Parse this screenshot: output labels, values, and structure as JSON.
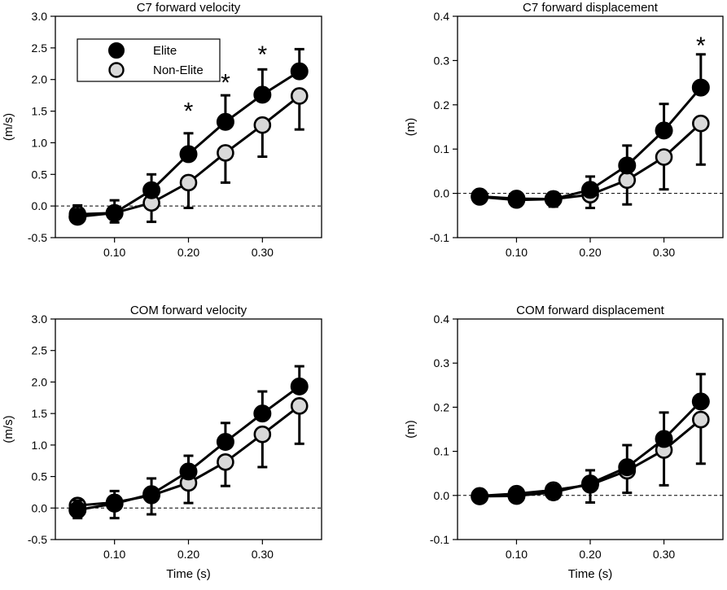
{
  "colors": {
    "elite": "#000000",
    "non_elite": "#d9d9d9",
    "axis": "#000000",
    "zero_line": "#000000"
  },
  "legend": {
    "placement": "top-left",
    "entries": [
      "Elite",
      "Non-Elite"
    ],
    "panel": 0
  },
  "chart_data": [
    {
      "type": "line",
      "title": "C7 forward velocity",
      "xlabel": "",
      "ylabel": "(m/s)",
      "xlim": [
        0.02,
        0.38
      ],
      "ylim": [
        -0.5,
        3.0
      ],
      "xticks": [
        0.1,
        0.2,
        0.3
      ],
      "xtick_labels": [
        "0.10",
        "0.20",
        "0.30"
      ],
      "yticks": [
        -0.5,
        0.0,
        0.5,
        1.0,
        1.5,
        2.0,
        2.5,
        3.0
      ],
      "ytick_labels": [
        "-0.5",
        "0.0",
        "0.5",
        "1.0",
        "1.5",
        "2.0",
        "2.5",
        "3.0"
      ],
      "x": [
        0.05,
        0.1,
        0.15,
        0.2,
        0.25,
        0.3,
        0.35
      ],
      "series": [
        {
          "name": "Elite",
          "values": [
            -0.17,
            -0.11,
            0.25,
            0.82,
            1.33,
            1.76,
            2.13
          ],
          "err": [
            0.18,
            0.2,
            0.25,
            0.33,
            0.42,
            0.4,
            0.35
          ]
        },
        {
          "name": "Non-Elite",
          "values": [
            -0.13,
            -0.11,
            0.05,
            0.37,
            0.84,
            1.28,
            1.74
          ],
          "err": [
            0.12,
            0.15,
            0.3,
            0.4,
            0.47,
            0.5,
            0.53
          ]
        }
      ],
      "annotations": [
        {
          "text": "*",
          "x": 0.2,
          "y": 1.58
        },
        {
          "text": "*",
          "x": 0.25,
          "y": 2.03
        },
        {
          "text": "*",
          "x": 0.3,
          "y": 2.47
        }
      ],
      "zero_line": true
    },
    {
      "type": "line",
      "title": "C7 forward displacement",
      "xlabel": "",
      "ylabel": "(m)",
      "xlim": [
        0.02,
        0.38
      ],
      "ylim": [
        -0.1,
        0.4
      ],
      "xticks": [
        0.1,
        0.2,
        0.3
      ],
      "xtick_labels": [
        "0.10",
        "0.20",
        "0.30"
      ],
      "yticks": [
        -0.1,
        0.0,
        0.1,
        0.2,
        0.3,
        0.4
      ],
      "ytick_labels": [
        "-0.1",
        "0.0",
        "0.1",
        "0.2",
        "0.3",
        "0.4"
      ],
      "x": [
        0.05,
        0.1,
        0.15,
        0.2,
        0.25,
        0.3,
        0.35
      ],
      "series": [
        {
          "name": "Elite",
          "values": [
            -0.007,
            -0.012,
            -0.013,
            0.008,
            0.063,
            0.142,
            0.239
          ],
          "err": [
            0.005,
            0.008,
            0.015,
            0.03,
            0.045,
            0.06,
            0.075
          ]
        },
        {
          "name": "Non-Elite",
          "values": [
            -0.008,
            -0.015,
            -0.013,
            -0.003,
            0.03,
            0.082,
            0.158
          ],
          "err": [
            0.005,
            0.01,
            0.017,
            0.03,
            0.055,
            0.073,
            0.093
          ]
        }
      ],
      "annotations": [
        {
          "text": "*",
          "x": 0.35,
          "y": 0.345
        }
      ],
      "zero_line": true
    },
    {
      "type": "line",
      "title": "COM forward velocity",
      "xlabel": "Time (s)",
      "ylabel": "(m/s)",
      "xlim": [
        0.02,
        0.38
      ],
      "ylim": [
        -0.5,
        3.0
      ],
      "xticks": [
        0.1,
        0.2,
        0.3
      ],
      "xtick_labels": [
        "0.10",
        "0.20",
        "0.30"
      ],
      "yticks": [
        -0.5,
        0.0,
        0.5,
        1.0,
        1.5,
        2.0,
        2.5,
        3.0
      ],
      "ytick_labels": [
        "-0.5",
        "0.0",
        "0.5",
        "1.0",
        "1.5",
        "2.0",
        "2.5",
        "3.0"
      ],
      "x": [
        0.05,
        0.1,
        0.15,
        0.2,
        0.25,
        0.3,
        0.35
      ],
      "series": [
        {
          "name": "Elite",
          "values": [
            -0.03,
            0.07,
            0.22,
            0.58,
            1.05,
            1.5,
            1.93
          ],
          "err": [
            0.15,
            0.2,
            0.25,
            0.25,
            0.3,
            0.35,
            0.32
          ]
        },
        {
          "name": "Non-Elite",
          "values": [
            0.04,
            0.09,
            0.2,
            0.4,
            0.73,
            1.17,
            1.62
          ],
          "err": [
            0.2,
            0.25,
            0.3,
            0.32,
            0.38,
            0.52,
            0.6
          ]
        }
      ],
      "annotations": [],
      "zero_line": true
    },
    {
      "type": "line",
      "title": "COM forward displacement",
      "xlabel": "Time (s)",
      "ylabel": "(m)",
      "xlim": [
        0.02,
        0.38
      ],
      "ylim": [
        -0.1,
        0.4
      ],
      "xticks": [
        0.1,
        0.2,
        0.3
      ],
      "xtick_labels": [
        "0.10",
        "0.20",
        "0.30"
      ],
      "yticks": [
        -0.1,
        0.0,
        0.1,
        0.2,
        0.3,
        0.4
      ],
      "ytick_labels": [
        "-0.1",
        "0.0",
        "0.1",
        "0.2",
        "0.3",
        "0.4"
      ],
      "x": [
        0.05,
        0.1,
        0.15,
        0.2,
        0.25,
        0.3,
        0.35
      ],
      "series": [
        {
          "name": "Elite",
          "values": [
            -0.002,
            -0.001,
            0.007,
            0.027,
            0.064,
            0.128,
            0.213
          ],
          "err": [
            0.005,
            0.01,
            0.015,
            0.03,
            0.05,
            0.06,
            0.062
          ]
        },
        {
          "name": "Non-Elite",
          "values": [
            -0.001,
            0.004,
            0.012,
            0.024,
            0.056,
            0.103,
            0.172
          ],
          "err": [
            0.005,
            0.01,
            0.02,
            0.04,
            0.05,
            0.08,
            0.1
          ]
        }
      ],
      "annotations": [],
      "zero_line": true
    }
  ]
}
